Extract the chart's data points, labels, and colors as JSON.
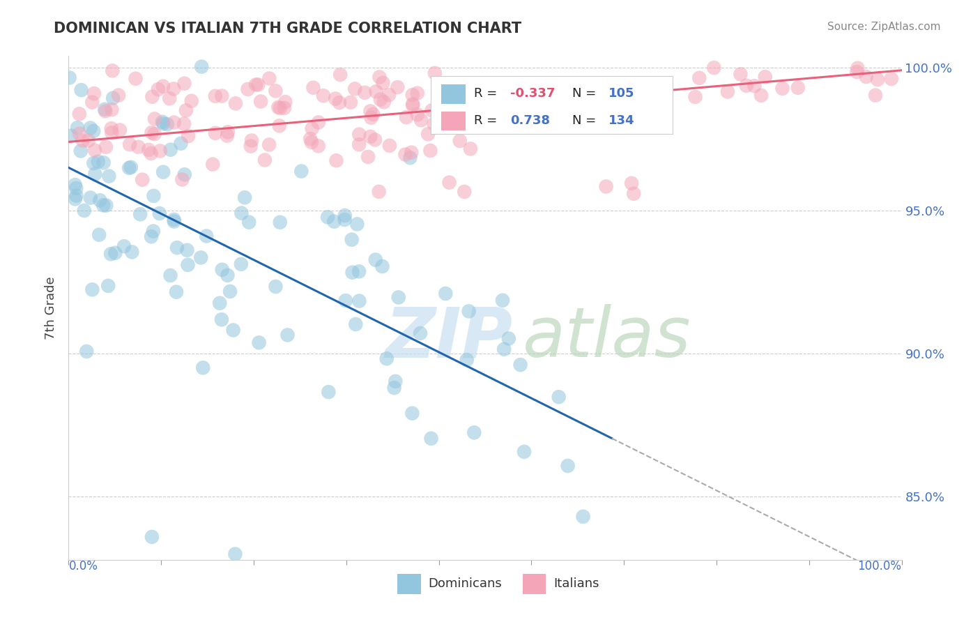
{
  "title": "DOMINICAN VS ITALIAN 7TH GRADE CORRELATION CHART",
  "source": "Source: ZipAtlas.com",
  "ylabel": "7th Grade",
  "xlim": [
    0.0,
    1.0
  ],
  "ylim": [
    0.828,
    1.004
  ],
  "yticks": [
    0.85,
    0.9,
    0.95,
    1.0
  ],
  "ytick_labels": [
    "85.0%",
    "90.0%",
    "95.0%",
    "100.0%"
  ],
  "blue_color": "#92c5de",
  "pink_color": "#f4a6b8",
  "blue_line_color": "#2166ac",
  "pink_line_color": "#e8607a",
  "legend_R_blue": "-0.337",
  "legend_N_blue": "105",
  "legend_R_pink": "0.738",
  "legend_N_pink": "134",
  "blue_seed": 42,
  "pink_seed": 99,
  "watermark_zip_color": "#c8dff0",
  "watermark_atlas_color": "#b8d4b8"
}
